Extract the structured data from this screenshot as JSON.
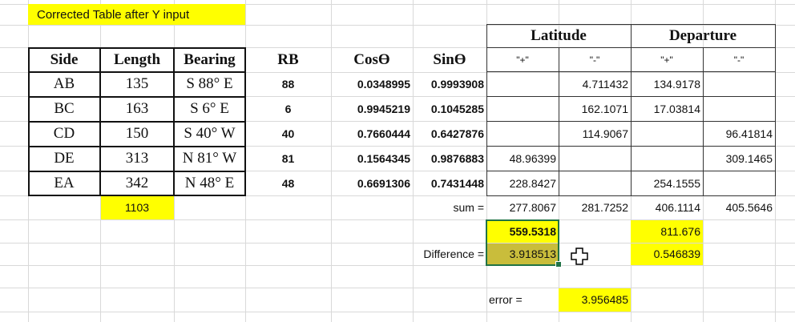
{
  "title_banner": "Corrected Table after Y input",
  "group_headers": {
    "latitude": "Latitude",
    "departure": "Departure"
  },
  "headers": {
    "side": "Side",
    "length": "Length",
    "bearing": "Bearing",
    "rb": "RB",
    "cos": "Cosϴ",
    "sin": "Sinϴ",
    "lat_plus": "\"+\"",
    "lat_minus": "\"-\"",
    "dep_plus": "\"+\"",
    "dep_minus": "\"-\""
  },
  "rows": [
    {
      "side": "AB",
      "length": "135",
      "bearing": "S 88° E",
      "rb": "88",
      "cos": "0.0348995",
      "sin": "0.9993908",
      "lat_plus": "",
      "lat_minus": "4.711432",
      "dep_plus": "134.9178",
      "dep_minus": ""
    },
    {
      "side": "BC",
      "length": "163",
      "bearing": "S 6° E",
      "rb": "6",
      "cos": "0.9945219",
      "sin": "0.1045285",
      "lat_plus": "",
      "lat_minus": "162.1071",
      "dep_plus": "17.03814",
      "dep_minus": ""
    },
    {
      "side": "CD",
      "length": "150",
      "bearing": "S 40° W",
      "rb": "40",
      "cos": "0.7660444",
      "sin": "0.6427876",
      "lat_plus": "",
      "lat_minus": "114.9067",
      "dep_plus": "",
      "dep_minus": "96.41814"
    },
    {
      "side": "DE",
      "length": "313",
      "bearing": "N 81° W",
      "rb": "81",
      "cos": "0.1564345",
      "sin": "0.9876883",
      "lat_plus": "48.96399",
      "lat_minus": "",
      "dep_plus": "",
      "dep_minus": "309.1465"
    },
    {
      "side": "EA",
      "length": "342",
      "bearing": "N 48° E",
      "rb": "48",
      "cos": "0.6691306",
      "sin": "0.7431448",
      "lat_plus": "228.8427",
      "lat_minus": "",
      "dep_plus": "254.1555",
      "dep_minus": ""
    }
  ],
  "total_length": "1103",
  "sum": {
    "label": "sum =",
    "lat_plus": "277.8067",
    "lat_minus": "281.7252",
    "dep_plus": "406.1114",
    "dep_minus": "405.5646"
  },
  "lat_total": "559.5318",
  "dep_total": "811.676",
  "difference": {
    "label": "Difference =",
    "lat": "3.918513",
    "dep": "0.546839"
  },
  "error": {
    "label": "error =",
    "value": "3.956485"
  },
  "colors": {
    "highlight": "#ffff00",
    "selection": "#217346",
    "gridline": "#d9d9d9"
  }
}
